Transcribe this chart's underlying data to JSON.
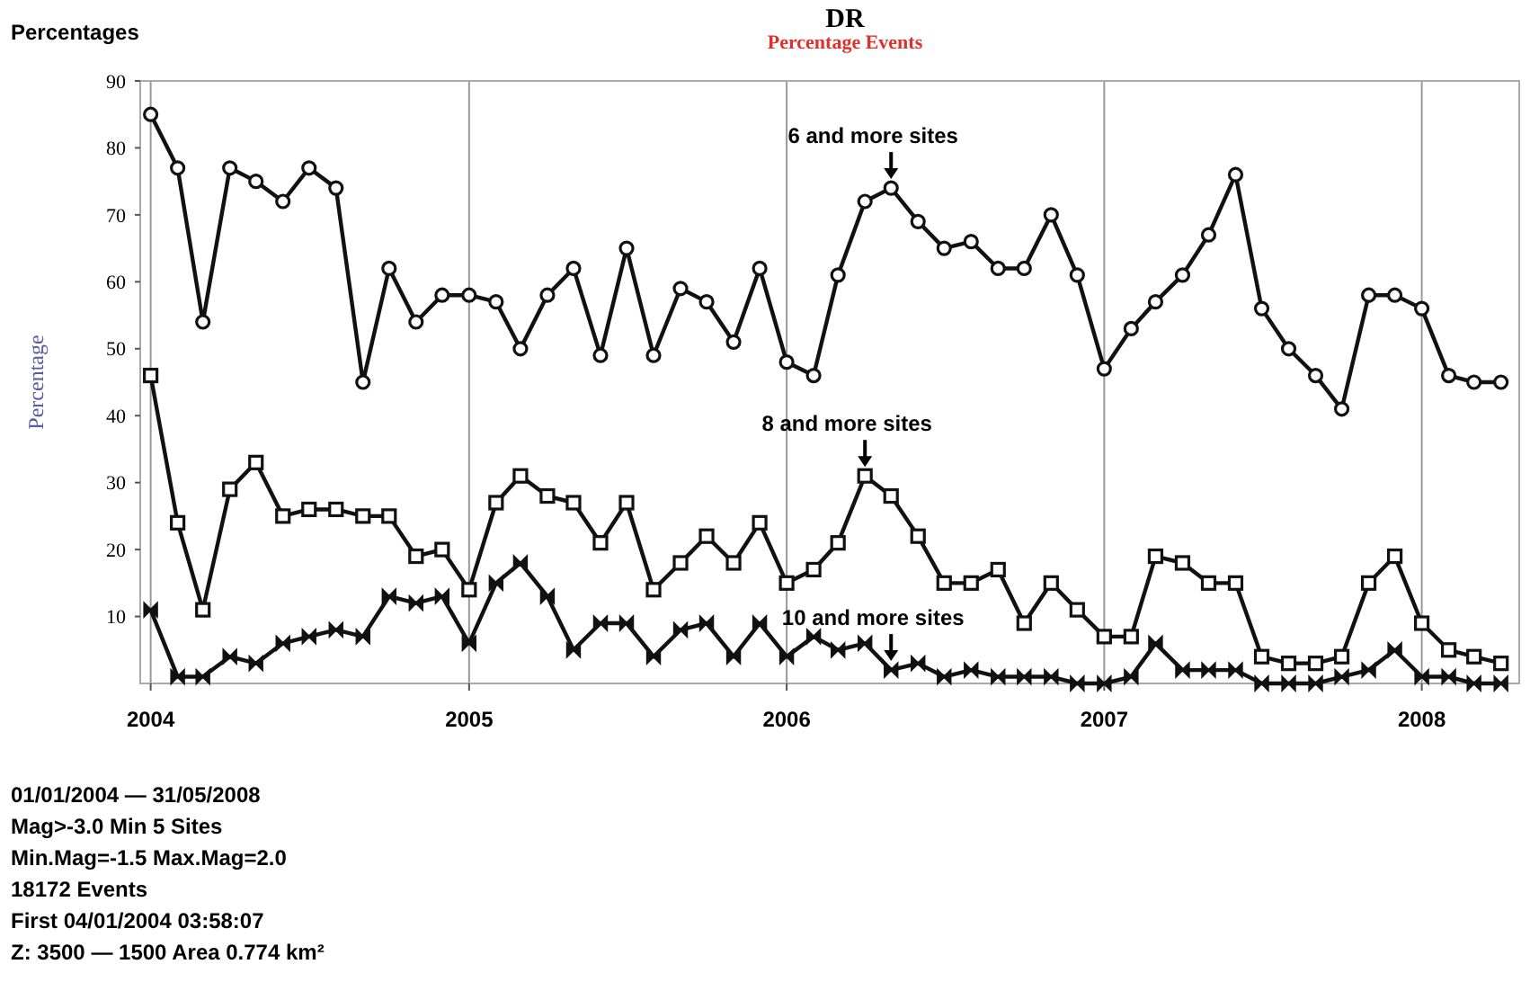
{
  "chart_data": {
    "type": "line",
    "title": "DR",
    "subtitle": "Percentage Events",
    "ylabel": "Percentage",
    "x": [
      "2004-01",
      "2004-02",
      "2004-03",
      "2004-04",
      "2004-05",
      "2004-06",
      "2004-07",
      "2004-08",
      "2004-09",
      "2004-10",
      "2004-11",
      "2004-12",
      "2005-01",
      "2005-02",
      "2005-03",
      "2005-04",
      "2005-05",
      "2005-06",
      "2005-07",
      "2005-08",
      "2005-09",
      "2005-10",
      "2005-11",
      "2005-12",
      "2006-01",
      "2006-02",
      "2006-03",
      "2006-04",
      "2006-05",
      "2006-06",
      "2006-07",
      "2006-08",
      "2006-09",
      "2006-10",
      "2006-11",
      "2006-12",
      "2007-01",
      "2007-02",
      "2007-03",
      "2007-04",
      "2007-05",
      "2007-06",
      "2007-07",
      "2007-08",
      "2007-09",
      "2007-10",
      "2007-11",
      "2007-12",
      "2008-01",
      "2008-02",
      "2008-03",
      "2008-04"
    ],
    "series": [
      {
        "color": "#111111",
        "marker": "circle",
        "values": [
          85,
          77,
          54,
          77,
          75,
          72,
          77,
          74,
          45,
          62,
          54,
          58,
          58,
          57,
          50,
          58,
          62,
          49,
          65,
          49,
          59,
          57,
          51,
          62,
          48,
          46,
          61,
          72,
          74,
          69,
          65,
          66,
          62,
          62,
          70,
          61,
          47,
          53,
          57,
          61,
          67,
          76,
          56,
          50,
          46,
          41,
          58,
          58,
          56,
          46,
          45,
          45
        ]
      },
      {
        "color": "#111111",
        "marker": "square",
        "values": [
          46,
          24,
          11,
          29,
          33,
          25,
          26,
          26,
          25,
          25,
          19,
          20,
          14,
          27,
          31,
          28,
          27,
          21,
          27,
          14,
          18,
          22,
          18,
          24,
          15,
          17,
          21,
          31,
          28,
          22,
          15,
          15,
          17,
          9,
          15,
          11,
          7,
          7,
          19,
          18,
          15,
          15,
          4,
          3,
          3,
          4,
          15,
          19,
          9,
          5,
          4,
          3
        ]
      },
      {
        "color": "#111111",
        "marker": "diamond",
        "values": [
          11,
          1,
          1,
          4,
          3,
          6,
          7,
          8,
          7,
          13,
          12,
          13,
          6,
          15,
          18,
          13,
          5,
          9,
          9,
          4,
          8,
          9,
          4,
          9,
          4,
          7,
          5,
          6,
          2,
          3,
          1,
          2,
          1,
          1,
          1,
          0,
          0,
          1,
          6,
          2,
          2,
          2,
          0,
          0,
          0,
          1,
          2,
          5,
          1,
          1,
          0,
          0
        ]
      }
    ],
    "xlim": [
      "2003-12-20",
      "2008-04-22"
    ],
    "xticks": [
      {
        "value": "2004-01",
        "label": "2004"
      },
      {
        "value": "2005-01",
        "label": "2005"
      },
      {
        "value": "2006-01",
        "label": "2006"
      },
      {
        "value": "2007-01",
        "label": "2007"
      },
      {
        "value": "2008-01",
        "label": "2008"
      }
    ],
    "ylim": [
      0,
      90
    ],
    "yticks": [
      10,
      20,
      30,
      40,
      50,
      60,
      70,
      80,
      90
    ],
    "grid": "x",
    "line_style": "solid",
    "annotations": [
      {
        "text": "6 and more sites",
        "x": "2006-05",
        "y": 74
      },
      {
        "text": "8 and more sites",
        "x": "2006-04",
        "y": 31
      },
      {
        "text": "10 and more sites",
        "x": "2006-05",
        "y": 2
      },
      "Percentages",
      "01/01/2004 — 31/05/2008",
      "Mag>-3.0 Min 5 Sites",
      "Min.Mag=-1.5 Max.Mag=2.0",
      "18172 Events",
      "First 04/01/2004 03:58:07",
      "Z: 3500 — 1500 Area 0.774 km²"
    ]
  }
}
